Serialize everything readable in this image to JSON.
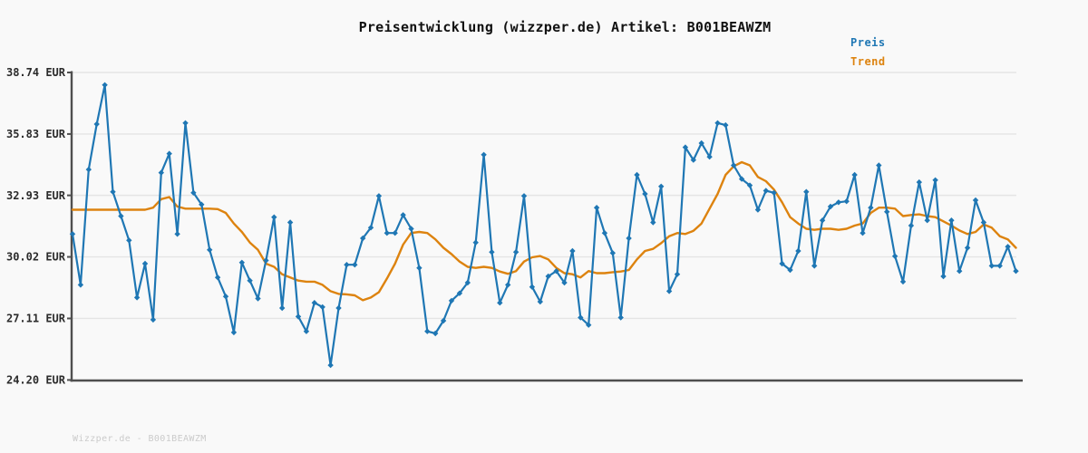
{
  "title": "Preisentwicklung (wizzper.de) Artikel: B001BEAWZM",
  "legend": {
    "price_label": "Preis",
    "trend_label": "Trend"
  },
  "footer": "Wizzper.de - B001BEAWZM",
  "colors": {
    "background": "#f9f9f9",
    "grid": "#e5e5e5",
    "axis": "#4f4f4f",
    "price": "#1f77b4",
    "trend": "#dd830f",
    "title_text": "#111111",
    "tick_text": "#2b2b2b",
    "footer_text": "#cbcbcb"
  },
  "chart_data": {
    "type": "line",
    "title": "Preisentwicklung (wizzper.de) Artikel: B001BEAWZM",
    "xlabel": "",
    "ylabel": "",
    "unit": "EUR",
    "ylim": [
      24.2,
      38.74
    ],
    "grid": "horizontal",
    "legend_position": "top-right",
    "x_axis": {
      "tick_labels_visible": false,
      "n_points": 118
    },
    "y_ticks": [
      {
        "label": "38.74 EUR",
        "value": 38.74
      },
      {
        "label": "35.83 EUR",
        "value": 35.83
      },
      {
        "label": "32.93 EUR",
        "value": 32.93
      },
      {
        "label": "30.02 EUR",
        "value": 30.02
      },
      {
        "label": "27.11 EUR",
        "value": 27.11
      },
      {
        "label": "24.20 EUR",
        "value": 24.2
      }
    ],
    "series": [
      {
        "name": "Preis",
        "color": "#1f77b4",
        "marker": "diamond",
        "values": [
          31.1,
          28.7,
          34.15,
          36.3,
          38.15,
          33.1,
          31.95,
          30.8,
          28.1,
          29.7,
          27.05,
          34.0,
          34.9,
          31.1,
          36.35,
          33.05,
          32.5,
          30.35,
          29.05,
          28.15,
          26.45,
          29.75,
          28.9,
          28.05,
          29.85,
          31.9,
          27.6,
          31.65,
          27.2,
          26.5,
          27.85,
          27.65,
          24.9,
          27.6,
          29.65,
          29.65,
          30.9,
          31.4,
          32.9,
          31.15,
          31.15,
          32.0,
          31.35,
          29.5,
          26.5,
          26.4,
          27.0,
          27.95,
          28.3,
          28.8,
          30.7,
          34.85,
          30.25,
          27.85,
          28.7,
          30.25,
          32.9,
          28.6,
          27.9,
          29.1,
          29.35,
          28.8,
          30.3,
          27.15,
          26.8,
          32.35,
          31.15,
          30.2,
          27.15,
          30.9,
          33.9,
          33.0,
          31.65,
          33.35,
          28.4,
          29.2,
          35.2,
          34.6,
          35.4,
          34.75,
          36.35,
          36.25,
          34.35,
          33.7,
          33.4,
          32.25,
          33.15,
          33.05,
          29.7,
          29.4,
          30.3,
          33.1,
          29.6,
          31.75,
          32.4,
          32.6,
          32.65,
          33.9,
          31.15,
          32.35,
          34.35,
          32.15,
          30.05,
          28.85,
          31.5,
          33.55,
          31.75,
          33.65,
          29.1,
          31.75,
          29.35,
          30.45,
          32.7,
          31.65,
          29.6,
          29.6,
          30.5,
          29.35
        ]
      },
      {
        "name": "Trend",
        "color": "#dd830f",
        "marker": "none",
        "values": [
          32.25,
          32.25,
          32.25,
          32.25,
          32.25,
          32.25,
          32.25,
          32.25,
          32.25,
          32.25,
          32.35,
          32.75,
          32.85,
          32.4,
          32.3,
          32.3,
          32.3,
          32.3,
          32.28,
          32.1,
          31.6,
          31.2,
          30.7,
          30.35,
          29.7,
          29.55,
          29.2,
          29.05,
          28.9,
          28.85,
          28.85,
          28.7,
          28.4,
          28.27,
          28.25,
          28.2,
          27.97,
          28.1,
          28.35,
          29.0,
          29.7,
          30.6,
          31.15,
          31.2,
          31.15,
          30.85,
          30.45,
          30.15,
          29.8,
          29.55,
          29.5,
          29.55,
          29.5,
          29.33,
          29.22,
          29.35,
          29.8,
          30.0,
          30.06,
          29.9,
          29.5,
          29.25,
          29.2,
          29.05,
          29.35,
          29.25,
          29.25,
          29.3,
          29.33,
          29.4,
          29.9,
          30.3,
          30.4,
          30.67,
          31.0,
          31.15,
          31.1,
          31.25,
          31.6,
          32.3,
          33.0,
          33.9,
          34.3,
          34.5,
          34.35,
          33.8,
          33.6,
          33.2,
          32.6,
          31.9,
          31.6,
          31.35,
          31.3,
          31.35,
          31.35,
          31.3,
          31.35,
          31.5,
          31.6,
          32.1,
          32.35,
          32.35,
          32.3,
          31.95,
          32.0,
          32.03,
          31.95,
          31.9,
          31.7,
          31.5,
          31.27,
          31.1,
          31.2,
          31.55,
          31.4,
          31.0,
          30.85,
          30.45
        ]
      }
    ]
  }
}
